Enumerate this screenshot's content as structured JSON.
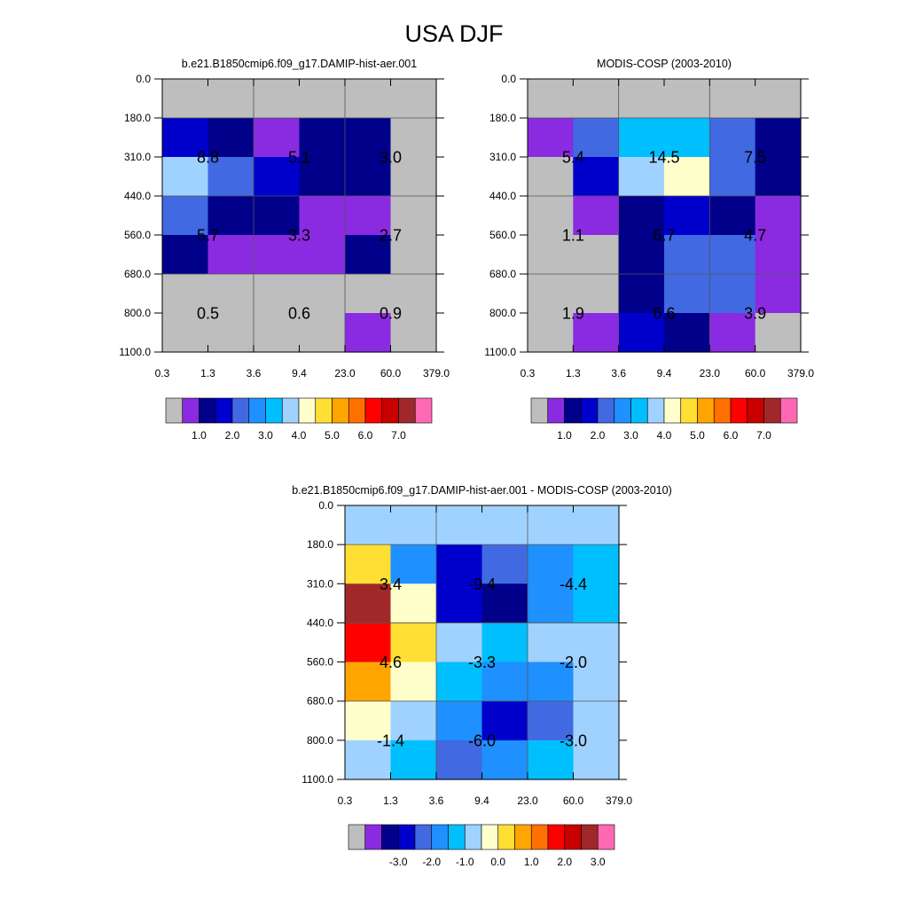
{
  "title": "USA DJF",
  "chart_data": [
    {
      "type": "heatmap",
      "title": "b.e21.B1850cmip6.f09_g17.DAMIP-hist-aer.001",
      "x_ticks": [
        "0.3",
        "1.3",
        "3.6",
        "9.4",
        "23.0",
        "60.0",
        "379.0"
      ],
      "y_ticks": [
        "0.0",
        "180.0",
        "310.0",
        "440.0",
        "560.0",
        "680.0",
        "800.0",
        "1100.0"
      ],
      "cells": [
        [
          "gray",
          "gray",
          "gray",
          "gray",
          "gray",
          "gray"
        ],
        [
          "#0000cd",
          "#00008b",
          "#8a2be2",
          "#00008b",
          "#00008b",
          "gray"
        ],
        [
          "#a0d2ff",
          "#4169e1",
          "#0000cd",
          "#00008b",
          "#00008b",
          "gray"
        ],
        [
          "#4169e1",
          "#00008b",
          "#00008b",
          "#8a2be2",
          "#8a2be2",
          "gray"
        ],
        [
          "#00008b",
          "#8a2be2",
          "#8a2be2",
          "#8a2be2",
          "#00008b",
          "gray"
        ],
        [
          "gray",
          "gray",
          "gray",
          "gray",
          "gray",
          "gray"
        ],
        [
          "gray",
          "gray",
          "gray",
          "gray",
          "#8a2be2",
          "gray"
        ]
      ],
      "labels": [
        [
          "8.8",
          "5.1",
          "3.0"
        ],
        [
          "5.7",
          "3.3",
          "2.7"
        ],
        [
          "0.5",
          "0.6",
          "0.9"
        ]
      ],
      "colorbar": {
        "colors": [
          "#bebebe",
          "#8a2be2",
          "#00008b",
          "#0000cd",
          "#4169e1",
          "#1e90ff",
          "#00bfff",
          "#a0d2ff",
          "#ffffcc",
          "#ffdf33",
          "#ffa500",
          "#ff7000",
          "#ff0000",
          "#c80000",
          "#a02828",
          "#ff69b4"
        ],
        "labels": [
          "1.0",
          "2.0",
          "3.0",
          "4.0",
          "5.0",
          "6.0",
          "7.0"
        ],
        "label_start": 1
      }
    },
    {
      "type": "heatmap",
      "title": "MODIS-COSP (2003-2010)",
      "x_ticks": [
        "0.3",
        "1.3",
        "3.6",
        "9.4",
        "23.0",
        "60.0",
        "379.0"
      ],
      "y_ticks": [
        "0.0",
        "180.0",
        "310.0",
        "440.0",
        "560.0",
        "680.0",
        "800.0",
        "1100.0"
      ],
      "cells": [
        [
          "gray",
          "gray",
          "gray",
          "gray",
          "gray",
          "gray"
        ],
        [
          "#8a2be2",
          "#4169e1",
          "#00bfff",
          "#00bfff",
          "#4169e1",
          "#00008b"
        ],
        [
          "gray",
          "#0000cd",
          "#a0d2ff",
          "#ffffcc",
          "#4169e1",
          "#00008b"
        ],
        [
          "gray",
          "#8a2be2",
          "#00008b",
          "#0000cd",
          "#00008b",
          "#8a2be2"
        ],
        [
          "gray",
          "gray",
          "#00008b",
          "#4169e1",
          "#4169e1",
          "#8a2be2"
        ],
        [
          "gray",
          "gray",
          "#00008b",
          "#4169e1",
          "#4169e1",
          "#8a2be2"
        ],
        [
          "gray",
          "#8a2be2",
          "#0000cd",
          "#00008b",
          "#8a2be2",
          "gray"
        ]
      ],
      "labels": [
        [
          "5.4",
          "14.5",
          "7.5"
        ],
        [
          "1.1",
          "6.7",
          "4.7"
        ],
        [
          "1.9",
          "6.6",
          "3.9"
        ]
      ],
      "colorbar": {
        "colors": [
          "#bebebe",
          "#8a2be2",
          "#00008b",
          "#0000cd",
          "#4169e1",
          "#1e90ff",
          "#00bfff",
          "#a0d2ff",
          "#ffffcc",
          "#ffdf33",
          "#ffa500",
          "#ff7000",
          "#ff0000",
          "#c80000",
          "#a02828",
          "#ff69b4"
        ],
        "labels": [
          "1.0",
          "2.0",
          "3.0",
          "4.0",
          "5.0",
          "6.0",
          "7.0"
        ],
        "label_start": 1
      }
    },
    {
      "type": "heatmap",
      "title": "b.e21.B1850cmip6.f09_g17.DAMIP-hist-aer.001 - MODIS-COSP (2003-2010)",
      "x_ticks": [
        "0.3",
        "1.3",
        "3.6",
        "9.4",
        "23.0",
        "60.0",
        "379.0"
      ],
      "y_ticks": [
        "0.0",
        "180.0",
        "310.0",
        "440.0",
        "560.0",
        "680.0",
        "800.0",
        "1100.0"
      ],
      "cells": [
        [
          "#a0d2ff",
          "#a0d2ff",
          "#a0d2ff",
          "#a0d2ff",
          "#a0d2ff",
          "#a0d2ff"
        ],
        [
          "#ffdf33",
          "#1e90ff",
          "#0000cd",
          "#4169e1",
          "#1e90ff",
          "#00bfff"
        ],
        [
          "#a02828",
          "#ffffcc",
          "#0000cd",
          "#00008b",
          "#1e90ff",
          "#00bfff"
        ],
        [
          "#ff0000",
          "#ffdf33",
          "#a0d2ff",
          "#00bfff",
          "#a0d2ff",
          "#a0d2ff"
        ],
        [
          "#ffa500",
          "#ffffcc",
          "#00bfff",
          "#1e90ff",
          "#1e90ff",
          "#a0d2ff"
        ],
        [
          "#ffffcc",
          "#a0d2ff",
          "#1e90ff",
          "#0000cd",
          "#4169e1",
          "#a0d2ff"
        ],
        [
          "#a0d2ff",
          "#00bfff",
          "#4169e1",
          "#1e90ff",
          "#00bfff",
          "#a0d2ff"
        ]
      ],
      "labels": [
        [
          "3.4",
          "-9.4",
          "-4.4"
        ],
        [
          "4.6",
          "-3.3",
          "-2.0"
        ],
        [
          "-1.4",
          "-6.0",
          "-3.0"
        ]
      ],
      "colorbar": {
        "colors": [
          "#bebebe",
          "#8a2be2",
          "#00008b",
          "#0000cd",
          "#4169e1",
          "#1e90ff",
          "#00bfff",
          "#a0d2ff",
          "#ffffcc",
          "#ffdf33",
          "#ffa500",
          "#ff7000",
          "#ff0000",
          "#c80000",
          "#a02828",
          "#ff69b4"
        ],
        "labels": [
          "-3.0",
          "-2.0",
          "-1.0",
          "0.0",
          "1.0",
          "2.0",
          "3.0"
        ],
        "label_start": 2
      }
    }
  ]
}
